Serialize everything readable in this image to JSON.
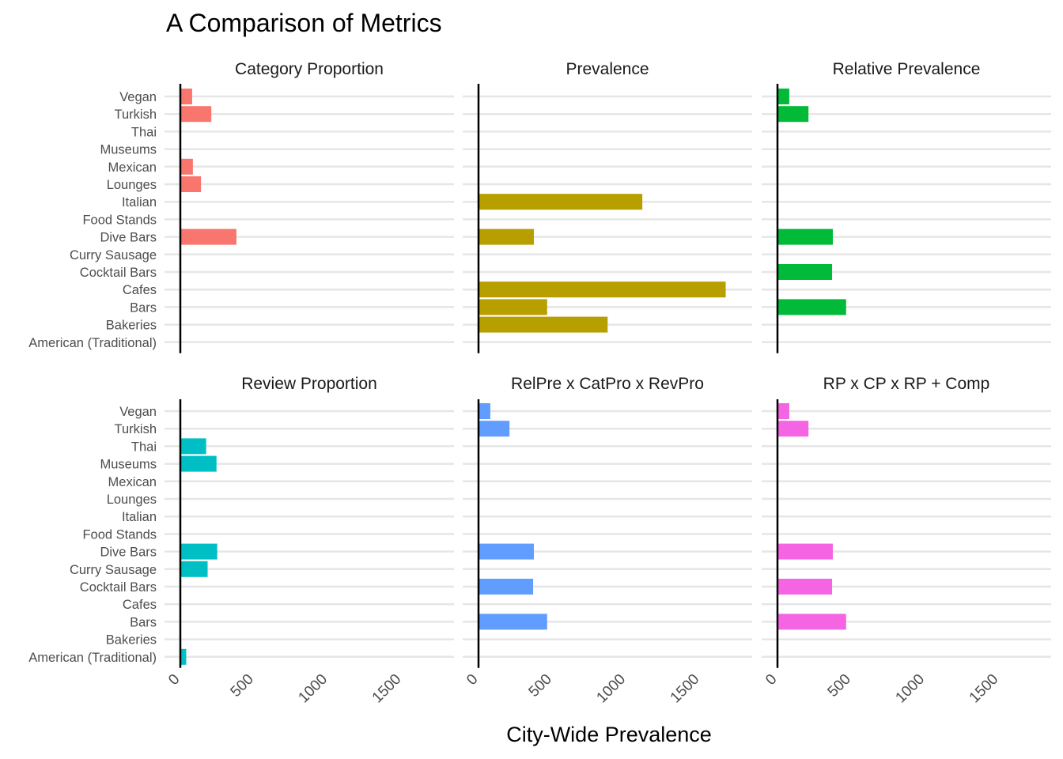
{
  "chart_data": {
    "type": "bar",
    "orientation": "horizontal",
    "title": "A Comparison of Metrics",
    "xlabel": "City-Wide Prevalence",
    "ylabel": "",
    "xlim": [
      0,
      1750
    ],
    "x_ticks": [
      0,
      500,
      1000,
      1500
    ],
    "x_tick_labels": [
      "0",
      "500",
      "1000",
      "1500"
    ],
    "grid": true,
    "legend": "none",
    "categories": [
      "Vegan",
      "Turkish",
      "Thai",
      "Museums",
      "Mexican",
      "Lounges",
      "Italian",
      "Food Stands",
      "Dive Bars",
      "Curry Sausage",
      "Cocktail Bars",
      "Cafes",
      "Bars",
      "Bakeries",
      "American (Traditional)"
    ],
    "series": [
      {
        "name": "Category Proportion",
        "color": "#F8766D",
        "values": [
          80,
          210,
          0,
          0,
          85,
          140,
          0,
          0,
          380,
          0,
          0,
          0,
          0,
          0,
          0
        ]
      },
      {
        "name": "Prevalence",
        "color": "#B79F00",
        "values": [
          0,
          0,
          0,
          0,
          0,
          0,
          1110,
          0,
          375,
          0,
          0,
          1675,
          465,
          875,
          0
        ]
      },
      {
        "name": "Relative Prevalence",
        "color": "#00BA38",
        "values": [
          80,
          210,
          0,
          0,
          0,
          0,
          0,
          0,
          375,
          0,
          370,
          0,
          465,
          0,
          0
        ]
      },
      {
        "name": "Review Proportion",
        "color": "#00BFC4",
        "values": [
          0,
          0,
          175,
          245,
          0,
          0,
          0,
          0,
          250,
          185,
          0,
          0,
          0,
          0,
          40
        ]
      },
      {
        "name": "RelPre x CatPro x RevPro",
        "color": "#619CFF",
        "values": [
          80,
          210,
          0,
          0,
          0,
          0,
          0,
          0,
          375,
          0,
          370,
          0,
          465,
          0,
          0
        ]
      },
      {
        "name": "RP x CP x RP + Comp",
        "color": "#F564E3",
        "values": [
          80,
          210,
          0,
          0,
          0,
          0,
          0,
          0,
          375,
          0,
          370,
          0,
          465,
          0,
          0
        ]
      }
    ]
  }
}
